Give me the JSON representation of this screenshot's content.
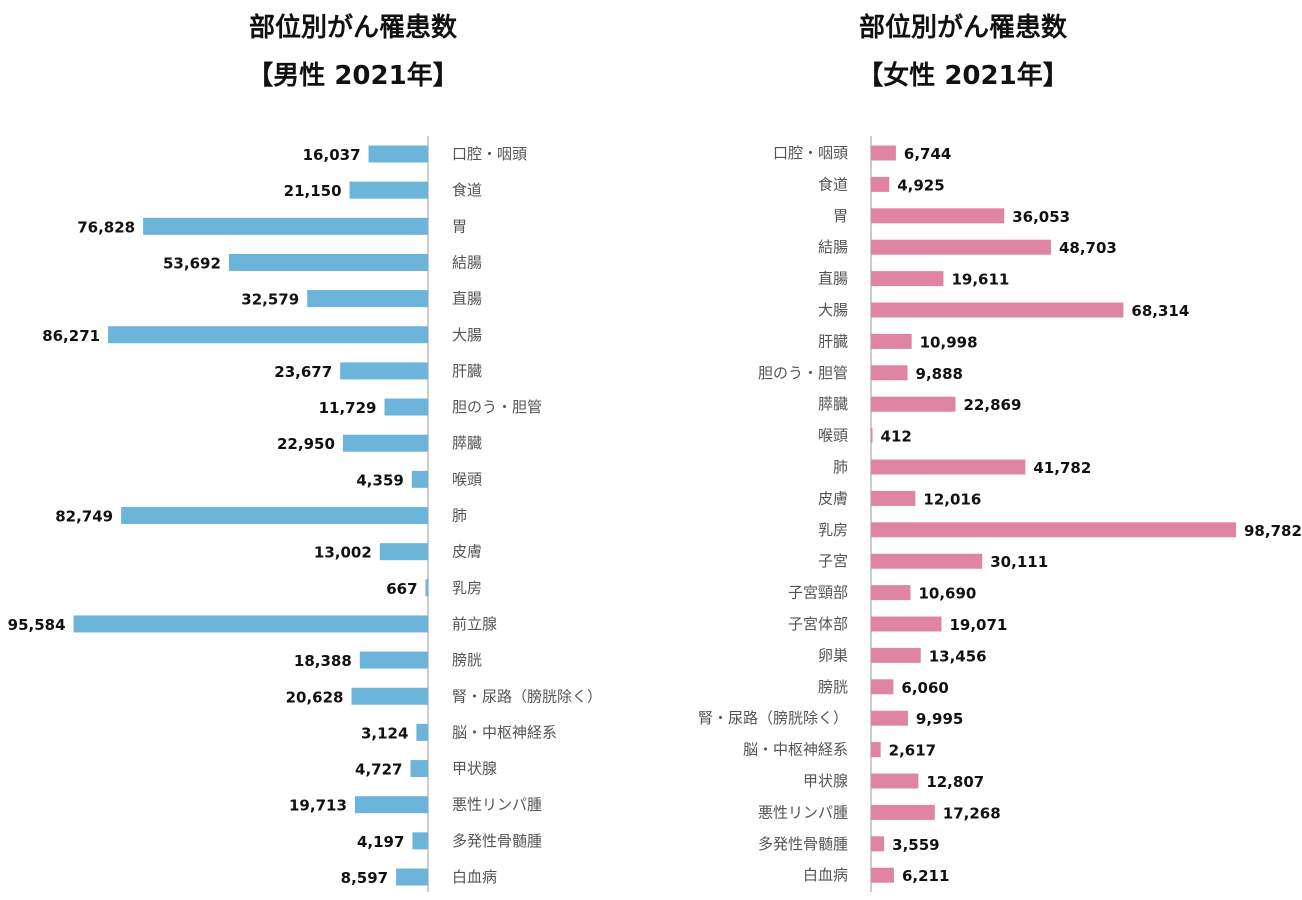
{
  "colors": {
    "male": "#6db4da",
    "female": "#e084a4",
    "axis": "#bcbcbc"
  },
  "chart_data": [
    {
      "type": "bar",
      "orientation": "horizontal",
      "direction": "right-to-left",
      "title": "部位別がん罹患数",
      "subtitle": "【男性 2021年】",
      "categories": [
        "口腔・咽頭",
        "食道",
        "胃",
        "結腸",
        "直腸",
        "大腸",
        "肝臓",
        "胆のう・胆管",
        "膵臓",
        "喉頭",
        "肺",
        "皮膚",
        "乳房",
        "前立腺",
        "膀胱",
        "腎・尿路（膀胱除く）",
        "脳・中枢神経系",
        "甲状腺",
        "悪性リンパ腫",
        "多発性骨髄腫",
        "白血病"
      ],
      "values": [
        16037,
        21150,
        76828,
        53692,
        32579,
        86271,
        23677,
        11729,
        22950,
        4359,
        82749,
        13002,
        667,
        95584,
        18388,
        20628,
        3124,
        4727,
        19713,
        4197,
        8597
      ],
      "labels": [
        "16,037",
        "21,150",
        "76,828",
        "53,692",
        "32,579",
        "86,271",
        "23,677",
        "11,729",
        "22,950",
        "4,359",
        "82,749",
        "13,002",
        "667",
        "95,584",
        "18,388",
        "20,628",
        "3,124",
        "4,727",
        "19,713",
        "4,197",
        "8,597"
      ],
      "xlim": [
        0,
        96000
      ]
    },
    {
      "type": "bar",
      "orientation": "horizontal",
      "direction": "left-to-right",
      "title": "部位別がん罹患数",
      "subtitle": "【女性 2021年】",
      "categories": [
        "口腔・咽頭",
        "食道",
        "胃",
        "結腸",
        "直腸",
        "大腸",
        "肝臓",
        "胆のう・胆管",
        "膵臓",
        "喉頭",
        "肺",
        "皮膚",
        "乳房",
        "子宮",
        "子宮頸部",
        "子宮体部",
        "卵巣",
        "膀胱",
        "腎・尿路（膀胱除く）",
        "脳・中枢神経系",
        "甲状腺",
        "悪性リンパ腫",
        "多発性骨髄腫",
        "白血病"
      ],
      "values": [
        6744,
        4925,
        36053,
        48703,
        19611,
        68314,
        10998,
        9888,
        22869,
        412,
        41782,
        12016,
        98782,
        30111,
        10690,
        19071,
        13456,
        6060,
        9995,
        2617,
        12807,
        17268,
        3559,
        6211
      ],
      "labels": [
        "6,744",
        "4,925",
        "36,053",
        "48,703",
        "19,611",
        "68,314",
        "10,998",
        "9,888",
        "22,869",
        "412",
        "41,782",
        "12,016",
        "98,782",
        "30,111",
        "10,690",
        "19,071",
        "13,456",
        "6,060",
        "9,995",
        "2,617",
        "12,807",
        "17,268",
        "3,559",
        "6,211"
      ],
      "xlim": [
        0,
        98782
      ]
    }
  ]
}
